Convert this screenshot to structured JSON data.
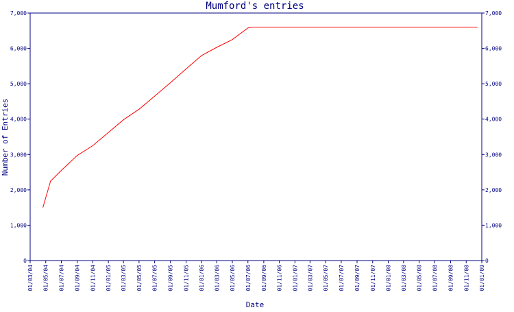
{
  "chart_data": {
    "type": "line",
    "title": "Mumford's entries",
    "xlabel": "Date",
    "ylabel": "Number of Entries",
    "ylim": [
      0,
      7000
    ],
    "y_ticks": [
      "0",
      "1,000",
      "2,000",
      "3,000",
      "4,000",
      "5,000",
      "6,000",
      "7,000"
    ],
    "y_tick_values": [
      0,
      1000,
      2000,
      3000,
      4000,
      5000,
      6000,
      7000
    ],
    "y_axis_right_mirrored": true,
    "x_ticks": [
      "01/03/04",
      "01/05/04",
      "01/07/04",
      "01/09/04",
      "01/11/04",
      "01/01/05",
      "01/03/05",
      "01/05/05",
      "01/07/05",
      "01/09/05",
      "01/11/05",
      "01/01/06",
      "01/03/06",
      "01/05/06",
      "01/07/06",
      "01/09/06",
      "01/11/06",
      "01/01/07",
      "01/03/07",
      "01/05/07",
      "01/07/07",
      "01/09/07",
      "01/11/07",
      "01/01/08",
      "01/03/08",
      "01/05/08",
      "01/07/08",
      "01/09/08",
      "01/11/08",
      "01/01/09"
    ],
    "grid": false,
    "line_color": "#ff0000",
    "axis_color": "#000080",
    "series": [
      {
        "points": [
          {
            "x": "2004-04-20",
            "y": 1500
          },
          {
            "x": "2004-05-20",
            "y": 2250
          },
          {
            "x": "2004-07-01",
            "y": 2550
          },
          {
            "x": "2004-09-01",
            "y": 2970
          },
          {
            "x": "2004-11-01",
            "y": 3250
          },
          {
            "x": "2005-01-01",
            "y": 3620
          },
          {
            "x": "2005-03-01",
            "y": 3980
          },
          {
            "x": "2005-05-01",
            "y": 4280
          },
          {
            "x": "2005-07-01",
            "y": 4650
          },
          {
            "x": "2005-09-01",
            "y": 5030
          },
          {
            "x": "2005-11-01",
            "y": 5420
          },
          {
            "x": "2006-01-01",
            "y": 5800
          },
          {
            "x": "2006-03-01",
            "y": 6030
          },
          {
            "x": "2006-05-01",
            "y": 6250
          },
          {
            "x": "2006-07-01",
            "y": 6580
          },
          {
            "x": "2006-07-15",
            "y": 6600
          },
          {
            "x": "2008-12-15",
            "y": 6600
          }
        ]
      }
    ]
  }
}
